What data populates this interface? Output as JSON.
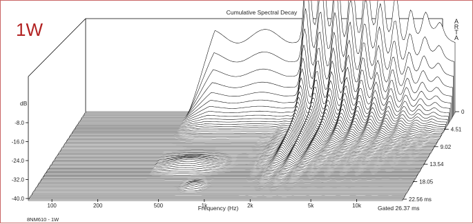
{
  "chart_data": {
    "type": "waterfall",
    "title": "Cumulative Spectral Decay",
    "badge": "1W",
    "brand": "A\nR\nT\nA",
    "xlabel": "Frequency (Hz)",
    "ylabel": "dB",
    "y_ticks": [
      "-8.0",
      "-16.0",
      "-24.0",
      "-32.0",
      "-40.0"
    ],
    "x_ticks": [
      {
        "label": "100",
        "f": 100
      },
      {
        "label": "200",
        "f": 200
      },
      {
        "label": "500",
        "f": 500
      },
      {
        "label": "1k",
        "f": 1000
      },
      {
        "label": "2k",
        "f": 2000
      },
      {
        "label": "5k",
        "f": 5000
      },
      {
        "label": "10k",
        "f": 10000
      }
    ],
    "time_ticks": [
      "0",
      "4.51",
      "9.02",
      "13.54",
      "18.05",
      "22.56 ms"
    ],
    "gate_label": "Gated 26.37 ms",
    "caption": "8NM610 - 1W",
    "xlim": [
      70,
      20000
    ],
    "ylim": [
      -40,
      0
    ],
    "time_range_ms": [
      0,
      22.56
    ],
    "scale": "log-x",
    "colors": {
      "frame": "#c86464",
      "badge": "#b22222",
      "curves": "#000000"
    }
  }
}
